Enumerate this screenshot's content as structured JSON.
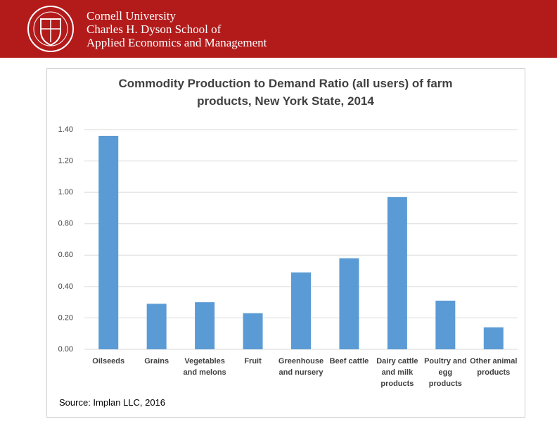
{
  "header": {
    "lines": [
      "Cornell University",
      "Charles H. Dyson School of",
      "Applied Economics and Management"
    ]
  },
  "chart_data": {
    "type": "bar",
    "title": "Commodity Production to Demand Ratio (all users) of farm products, New York State, 2014",
    "categories": [
      "Oilseeds",
      "Grains",
      "Vegetables and melons",
      "Fruit",
      "Greenhouse and nursery",
      "Beef cattle",
      "Dairy cattle and milk products",
      "Poultry and egg products",
      "Other animal products"
    ],
    "values": [
      1.36,
      0.29,
      0.3,
      0.23,
      0.49,
      0.58,
      0.97,
      0.31,
      0.14
    ],
    "color": "#5b9bd5",
    "ylim": [
      0,
      1.4
    ],
    "yticks": [
      {
        "value": 0,
        "label": "0.00"
      },
      {
        "value": 0.2,
        "label": "0.20"
      },
      {
        "value": 0.4,
        "label": "0.40"
      },
      {
        "value": 0.6,
        "label": "0.60"
      },
      {
        "value": 0.8,
        "label": "0.80"
      },
      {
        "value": 1.0,
        "label": "1.00"
      },
      {
        "value": 1.2,
        "label": "1.20"
      },
      {
        "value": 1.4,
        "label": "1.40"
      }
    ],
    "grid": true,
    "source": "Source: Implan LLC, 2016"
  }
}
